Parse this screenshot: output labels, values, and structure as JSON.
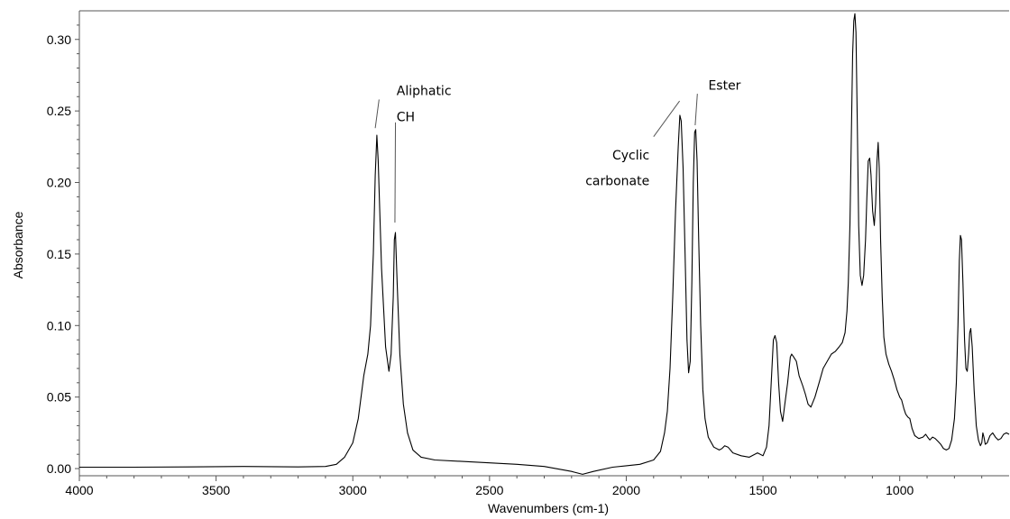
{
  "chart_data": {
    "type": "line",
    "xlabel": "Wavenumbers (cm-1)",
    "ylabel": "Absorbance",
    "xlim": [
      4000,
      600
    ],
    "ylim": [
      -0.005,
      0.32
    ],
    "x_reversed": true,
    "grid": false,
    "x_ticks": [
      {
        "value": 4000,
        "label": "4000"
      },
      {
        "value": 3500,
        "label": "3500"
      },
      {
        "value": 3000,
        "label": "3000"
      },
      {
        "value": 2500,
        "label": "2500"
      },
      {
        "value": 2000,
        "label": "2000"
      },
      {
        "value": 1500,
        "label": "1500"
      },
      {
        "value": 1000,
        "label": "1000"
      }
    ],
    "y_ticks": [
      {
        "value": 0.0,
        "label": "0.00"
      },
      {
        "value": 0.05,
        "label": "0.05"
      },
      {
        "value": 0.1,
        "label": "0.10"
      },
      {
        "value": 0.15,
        "label": "0.15"
      },
      {
        "value": 0.2,
        "label": "0.20"
      },
      {
        "value": 0.25,
        "label": "0.25"
      },
      {
        "value": 0.3,
        "label": "0.30"
      }
    ],
    "series": [
      {
        "color": "#000000",
        "points": [
          [
            4000,
            0.001
          ],
          [
            3800,
            0.001
          ],
          [
            3600,
            0.0012
          ],
          [
            3400,
            0.0015
          ],
          [
            3200,
            0.0012
          ],
          [
            3100,
            0.0015
          ],
          [
            3060,
            0.003
          ],
          [
            3030,
            0.008
          ],
          [
            3000,
            0.018
          ],
          [
            2980,
            0.035
          ],
          [
            2960,
            0.065
          ],
          [
            2945,
            0.08
          ],
          [
            2935,
            0.1
          ],
          [
            2925,
            0.15
          ],
          [
            2918,
            0.205
          ],
          [
            2912,
            0.233
          ],
          [
            2907,
            0.215
          ],
          [
            2895,
            0.14
          ],
          [
            2880,
            0.085
          ],
          [
            2868,
            0.068
          ],
          [
            2860,
            0.08
          ],
          [
            2852,
            0.12
          ],
          [
            2848,
            0.16
          ],
          [
            2844,
            0.165
          ],
          [
            2838,
            0.13
          ],
          [
            2828,
            0.08
          ],
          [
            2815,
            0.045
          ],
          [
            2800,
            0.025
          ],
          [
            2780,
            0.013
          ],
          [
            2750,
            0.008
          ],
          [
            2700,
            0.006
          ],
          [
            2600,
            0.005
          ],
          [
            2500,
            0.004
          ],
          [
            2400,
            0.003
          ],
          [
            2300,
            0.0015
          ],
          [
            2200,
            -0.002
          ],
          [
            2160,
            -0.004
          ],
          [
            2120,
            -0.002
          ],
          [
            2050,
            0.001
          ],
          [
            2000,
            0.002
          ],
          [
            1950,
            0.003
          ],
          [
            1900,
            0.006
          ],
          [
            1875,
            0.012
          ],
          [
            1860,
            0.025
          ],
          [
            1850,
            0.04
          ],
          [
            1840,
            0.07
          ],
          [
            1830,
            0.12
          ],
          [
            1820,
            0.18
          ],
          [
            1810,
            0.225
          ],
          [
            1804,
            0.247
          ],
          [
            1799,
            0.243
          ],
          [
            1792,
            0.21
          ],
          [
            1785,
            0.15
          ],
          [
            1778,
            0.09
          ],
          [
            1772,
            0.067
          ],
          [
            1766,
            0.075
          ],
          [
            1760,
            0.13
          ],
          [
            1755,
            0.2
          ],
          [
            1750,
            0.235
          ],
          [
            1746,
            0.237
          ],
          [
            1741,
            0.215
          ],
          [
            1735,
            0.16
          ],
          [
            1728,
            0.1
          ],
          [
            1720,
            0.055
          ],
          [
            1712,
            0.035
          ],
          [
            1700,
            0.022
          ],
          [
            1680,
            0.015
          ],
          [
            1660,
            0.013
          ],
          [
            1650,
            0.014
          ],
          [
            1640,
            0.016
          ],
          [
            1628,
            0.015
          ],
          [
            1610,
            0.011
          ],
          [
            1580,
            0.009
          ],
          [
            1550,
            0.008
          ],
          [
            1520,
            0.011
          ],
          [
            1500,
            0.009
          ],
          [
            1487,
            0.015
          ],
          [
            1478,
            0.03
          ],
          [
            1470,
            0.06
          ],
          [
            1462,
            0.09
          ],
          [
            1456,
            0.093
          ],
          [
            1450,
            0.088
          ],
          [
            1443,
            0.06
          ],
          [
            1436,
            0.04
          ],
          [
            1428,
            0.033
          ],
          [
            1420,
            0.045
          ],
          [
            1410,
            0.06
          ],
          [
            1400,
            0.078
          ],
          [
            1395,
            0.08
          ],
          [
            1388,
            0.078
          ],
          [
            1378,
            0.075
          ],
          [
            1368,
            0.065
          ],
          [
            1355,
            0.058
          ],
          [
            1345,
            0.052
          ],
          [
            1335,
            0.045
          ],
          [
            1325,
            0.043
          ],
          [
            1310,
            0.05
          ],
          [
            1295,
            0.06
          ],
          [
            1280,
            0.07
          ],
          [
            1265,
            0.075
          ],
          [
            1250,
            0.08
          ],
          [
            1235,
            0.082
          ],
          [
            1222,
            0.085
          ],
          [
            1210,
            0.088
          ],
          [
            1200,
            0.095
          ],
          [
            1193,
            0.11
          ],
          [
            1188,
            0.13
          ],
          [
            1182,
            0.17
          ],
          [
            1177,
            0.23
          ],
          [
            1172,
            0.29
          ],
          [
            1168,
            0.313
          ],
          [
            1164,
            0.318
          ],
          [
            1160,
            0.305
          ],
          [
            1155,
            0.24
          ],
          [
            1150,
            0.17
          ],
          [
            1144,
            0.135
          ],
          [
            1138,
            0.128
          ],
          [
            1132,
            0.135
          ],
          [
            1125,
            0.16
          ],
          [
            1120,
            0.19
          ],
          [
            1115,
            0.215
          ],
          [
            1110,
            0.217
          ],
          [
            1105,
            0.205
          ],
          [
            1099,
            0.18
          ],
          [
            1093,
            0.17
          ],
          [
            1088,
            0.185
          ],
          [
            1083,
            0.215
          ],
          [
            1079,
            0.228
          ],
          [
            1075,
            0.21
          ],
          [
            1070,
            0.16
          ],
          [
            1064,
            0.12
          ],
          [
            1058,
            0.092
          ],
          [
            1050,
            0.08
          ],
          [
            1040,
            0.073
          ],
          [
            1030,
            0.068
          ],
          [
            1020,
            0.062
          ],
          [
            1010,
            0.055
          ],
          [
            1000,
            0.05
          ],
          [
            993,
            0.048
          ],
          [
            985,
            0.042
          ],
          [
            978,
            0.038
          ],
          [
            970,
            0.036
          ],
          [
            963,
            0.035
          ],
          [
            955,
            0.028
          ],
          [
            945,
            0.023
          ],
          [
            930,
            0.021
          ],
          [
            915,
            0.022
          ],
          [
            905,
            0.024
          ],
          [
            898,
            0.022
          ],
          [
            890,
            0.02
          ],
          [
            880,
            0.022
          ],
          [
            870,
            0.021
          ],
          [
            860,
            0.019
          ],
          [
            850,
            0.017
          ],
          [
            840,
            0.014
          ],
          [
            830,
            0.013
          ],
          [
            820,
            0.014
          ],
          [
            810,
            0.02
          ],
          [
            800,
            0.035
          ],
          [
            793,
            0.06
          ],
          [
            787,
            0.1
          ],
          [
            782,
            0.145
          ],
          [
            778,
            0.163
          ],
          [
            774,
            0.16
          ],
          [
            769,
            0.13
          ],
          [
            763,
            0.09
          ],
          [
            758,
            0.07
          ],
          [
            753,
            0.068
          ],
          [
            748,
            0.08
          ],
          [
            744,
            0.095
          ],
          [
            740,
            0.098
          ],
          [
            735,
            0.085
          ],
          [
            728,
            0.055
          ],
          [
            720,
            0.03
          ],
          [
            712,
            0.02
          ],
          [
            705,
            0.016
          ],
          [
            700,
            0.018
          ],
          [
            696,
            0.025
          ],
          [
            692,
            0.022
          ],
          [
            687,
            0.017
          ],
          [
            680,
            0.018
          ],
          [
            670,
            0.023
          ],
          [
            660,
            0.025
          ],
          [
            650,
            0.022
          ],
          [
            640,
            0.02
          ],
          [
            630,
            0.021
          ],
          [
            620,
            0.024
          ],
          [
            610,
            0.025
          ],
          [
            600,
            0.024
          ]
        ]
      }
    ],
    "annotations": [
      {
        "text": "Aliphatic",
        "x": 2840,
        "y": 0.261,
        "anchor": "start"
      },
      {
        "text": "CH",
        "x": 2840,
        "y": 0.243,
        "anchor": "start"
      },
      {
        "text": "Cyclic",
        "x": 1915,
        "y": 0.216,
        "anchor": "end"
      },
      {
        "text": "carbonate",
        "x": 1915,
        "y": 0.198,
        "anchor": "end"
      },
      {
        "text": "Ester",
        "x": 1700,
        "y": 0.265,
        "anchor": "start"
      }
    ],
    "leader_lines": [
      {
        "from": [
          2918,
          0.238
        ],
        "to": [
          2904,
          0.258
        ]
      },
      {
        "from": [
          2846,
          0.172
        ],
        "to": [
          2844,
          0.242
        ]
      },
      {
        "from": [
          1900,
          0.232
        ],
        "to": [
          1805,
          0.257
        ]
      },
      {
        "from": [
          1748,
          0.24
        ],
        "to": [
          1740,
          0.262
        ]
      }
    ]
  }
}
